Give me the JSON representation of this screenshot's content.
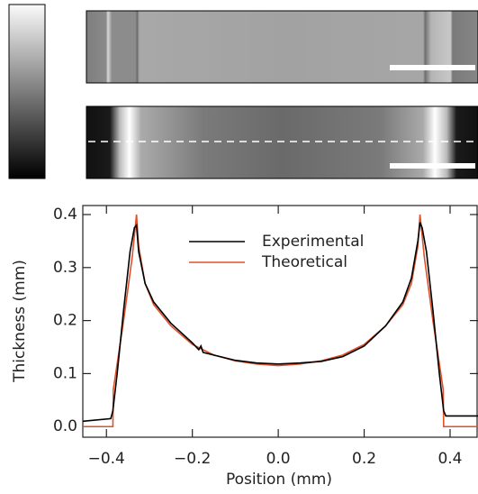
{
  "chart_data": {
    "type": "line",
    "xlabel": "Position (mm)",
    "ylabel": "Thickness (mm)",
    "xlim": [
      -0.455,
      0.465
    ],
    "ylim": [
      -0.02,
      0.417
    ],
    "xticks": [
      {
        "value": -0.4,
        "label": "−0.4"
      },
      {
        "value": -0.2,
        "label": "−0.2"
      },
      {
        "value": 0,
        "label": "0.0"
      },
      0.2,
      0.4
    ],
    "yticks": [
      {
        "value": 0,
        "label": "0.0"
      },
      0.1,
      0.2,
      0.3,
      0.4
    ],
    "legend": "upper center",
    "series": [
      {
        "name": "Experimental",
        "color": "#000000",
        "x": [
          -0.455,
          -0.39,
          -0.385,
          -0.375,
          -0.36,
          -0.345,
          -0.335,
          -0.33,
          -0.325,
          -0.31,
          -0.29,
          -0.25,
          -0.2,
          -0.185,
          -0.18,
          -0.175,
          -0.15,
          -0.1,
          -0.05,
          0,
          0.05,
          0.1,
          0.15,
          0.2,
          0.25,
          0.29,
          0.31,
          0.325,
          0.33,
          0.335,
          0.345,
          0.36,
          0.375,
          0.385,
          0.39,
          0.465
        ],
        "values": [
          0.01,
          0.015,
          0.03,
          0.1,
          0.22,
          0.33,
          0.375,
          0.38,
          0.33,
          0.27,
          0.235,
          0.195,
          0.158,
          0.145,
          0.152,
          0.14,
          0.135,
          0.125,
          0.12,
          0.118,
          0.12,
          0.123,
          0.132,
          0.152,
          0.19,
          0.235,
          0.28,
          0.35,
          0.385,
          0.375,
          0.33,
          0.22,
          0.1,
          0.03,
          0.02,
          0.02
        ]
      },
      {
        "name": "Theoretical",
        "color": "#e0502a",
        "x": [
          -0.455,
          -0.385,
          -0.384,
          -0.36,
          -0.34,
          -0.33,
          -0.325,
          -0.31,
          -0.29,
          -0.25,
          -0.2,
          -0.15,
          -0.1,
          -0.05,
          0,
          0.05,
          0.1,
          0.15,
          0.2,
          0.25,
          0.29,
          0.31,
          0.325,
          0.33,
          0.34,
          0.36,
          0.384,
          0.385,
          0.465
        ],
        "values": [
          0,
          0,
          0.07,
          0.2,
          0.32,
          0.4,
          0.34,
          0.27,
          0.23,
          0.19,
          0.155,
          0.135,
          0.124,
          0.118,
          0.115,
          0.118,
          0.124,
          0.135,
          0.155,
          0.19,
          0.23,
          0.27,
          0.34,
          0.4,
          0.32,
          0.2,
          0.07,
          0,
          0
        ]
      }
    ]
  }
}
